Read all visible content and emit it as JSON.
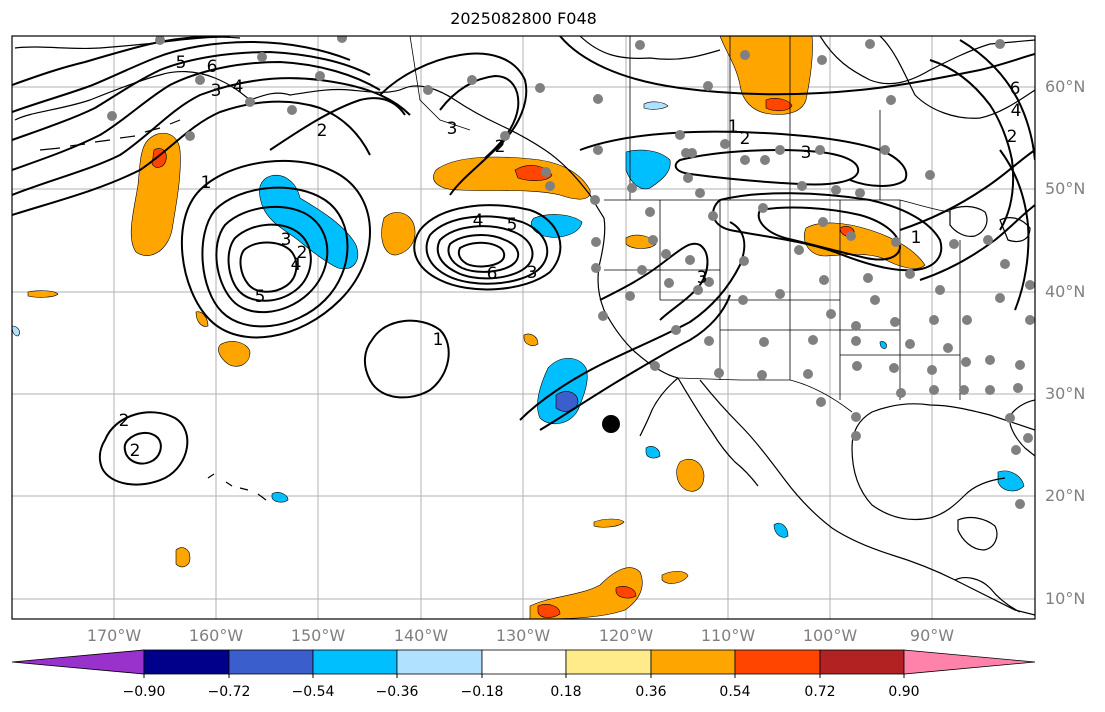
{
  "title": "2025082800 F048",
  "lat_labels": [
    "60°N",
    "50°N",
    "40°N",
    "30°N",
    "20°N",
    "10°N"
  ],
  "lon_labels": [
    "170°W",
    "160°W",
    "150°W",
    "140°W",
    "130°W",
    "120°W",
    "110°W",
    "100°W",
    "90°W"
  ],
  "colorbar": {
    "ticks": [
      "−0.90",
      "−0.72",
      "−0.54",
      "−0.36",
      "−0.18",
      "0.18",
      "0.36",
      "0.54",
      "0.72",
      "0.90"
    ],
    "colors": [
      "#9932cc",
      "#00008b",
      "#3a5fcd",
      "#00bfff",
      "#b0e2ff",
      "#ffffff",
      "#ffeb8a",
      "#ffa500",
      "#ff4500",
      "#b22222",
      "#ff82ab"
    ]
  },
  "colors": {
    "land_outline": "#000000",
    "contour": "#000000",
    "grid": "#b0b0b0",
    "station_dot": "#808080",
    "marker": "#000000",
    "shade_orange": "#ffa500",
    "shade_red": "#ff4500",
    "shade_cyan": "#00bfff",
    "shade_blue": "#3a5fcd",
    "shade_light": "#b0e2ff"
  },
  "contour_labels": [
    "6",
    "5",
    "4",
    "3",
    "2",
    "1",
    "2",
    "3",
    "4",
    "5",
    "6",
    "5",
    "4",
    "3",
    "2",
    "1",
    "2",
    "3",
    "1",
    "2",
    "3",
    "6",
    "4",
    "2",
    "1",
    "2",
    "3"
  ]
}
